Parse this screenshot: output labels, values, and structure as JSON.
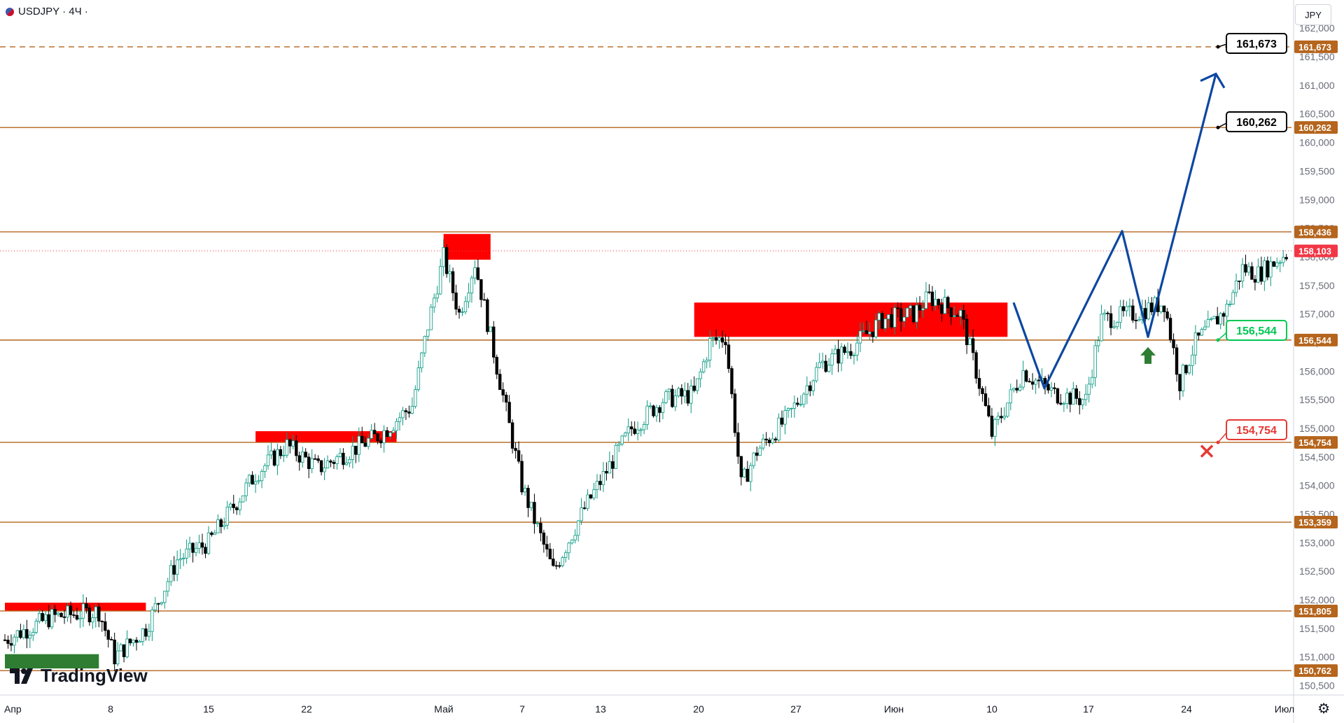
{
  "header": {
    "symbol": "USDJPY",
    "interval": "4Ч",
    "title": "USDJPY · 4Ч ·"
  },
  "currency": "JPY",
  "brand": "TradingView",
  "icons": {
    "flag": "us-flag-icon",
    "logo": "tradingview-logo-icon",
    "settings": "gear-icon"
  },
  "colors": {
    "level_line": "#b5651d",
    "up": "#4caf50",
    "down": "#f23645",
    "zone_red": "#ff0000",
    "zone_green": "#2e7d32",
    "forecast": "#0d47a1",
    "arrow_up": "#2e7d32",
    "cross": "#e53935"
  },
  "chart_data": {
    "type": "candlestick",
    "ylim": [
      150.25,
      162.6
    ],
    "y_ticks": [
      150.5,
      151,
      151.5,
      152,
      152.5,
      153,
      153.5,
      154,
      154.5,
      155,
      155.5,
      156,
      156.5,
      157,
      157.5,
      158,
      158.5,
      159,
      159.5,
      160,
      160.5,
      161,
      161.5,
      162
    ],
    "y_tick_labels": [
      "150,500",
      "151,000",
      "151,500",
      "152,000",
      "152,500",
      "153,000",
      "153,500",
      "154,000",
      "154,500",
      "155,000",
      "155,500",
      "156,000",
      "156,500",
      "157,000",
      "157,500",
      "158,000",
      "158,500",
      "159,000",
      "159,500",
      "160,000",
      "160,500",
      "161,000",
      "161,500",
      "162,000"
    ],
    "x_ticks": [
      "Апр",
      "8",
      "15",
      "22",
      "Май",
      "7",
      "13",
      "20",
      "27",
      "Июн",
      "10",
      "17",
      "24",
      "Июл"
    ],
    "levels": [
      {
        "value": 150.762,
        "label": "150,762"
      },
      {
        "value": 151.805,
        "label": "151,805"
      },
      {
        "value": 153.359,
        "label": "153,359"
      },
      {
        "value": 154.754,
        "label": "154,754"
      },
      {
        "value": 156.544,
        "label": "156,544"
      },
      {
        "value": 158.436,
        "label": "158,436"
      },
      {
        "value": 160.262,
        "label": "160,262"
      },
      {
        "value": 161.673,
        "label": "161,673",
        "dashed": true
      }
    ],
    "current_price": {
      "value": 158.103,
      "label": "158,103"
    },
    "callouts": [
      {
        "label": "161,673",
        "value": 161.673,
        "color": "#000000"
      },
      {
        "label": "160,262",
        "value": 160.262,
        "color": "#000000"
      },
      {
        "label": "156,544",
        "value": 156.544,
        "color": "#00c853"
      },
      {
        "label": "154,754",
        "value": 154.754,
        "color": "#e53935"
      }
    ],
    "forecast_path": [
      {
        "x": "Jun 11",
        "y": 157.2
      },
      {
        "x": "Jun 13",
        "y": 155.7
      },
      {
        "x": "Jun 18",
        "y": 158.45
      },
      {
        "x": "Jun 21",
        "y": 156.6
      },
      {
        "x": "Jun 26",
        "y": 161.2
      }
    ],
    "zones": [
      {
        "color": "red",
        "from": "Apr 1",
        "to": "Apr 10",
        "low": 151.8,
        "high": 151.95
      },
      {
        "color": "green",
        "from": "Apr 1",
        "to": "Apr 7",
        "low": 150.8,
        "high": 151.05
      },
      {
        "color": "red",
        "from": "Apr 17",
        "to": "Apr 26",
        "low": 154.75,
        "high": 154.95
      },
      {
        "color": "red",
        "from": "Apr 29",
        "to": "May 2",
        "low": 157.95,
        "high": 158.4
      },
      {
        "color": "red",
        "from": "May 15",
        "to": "Jun 4",
        "low": 156.6,
        "high": 157.2
      }
    ]
  }
}
